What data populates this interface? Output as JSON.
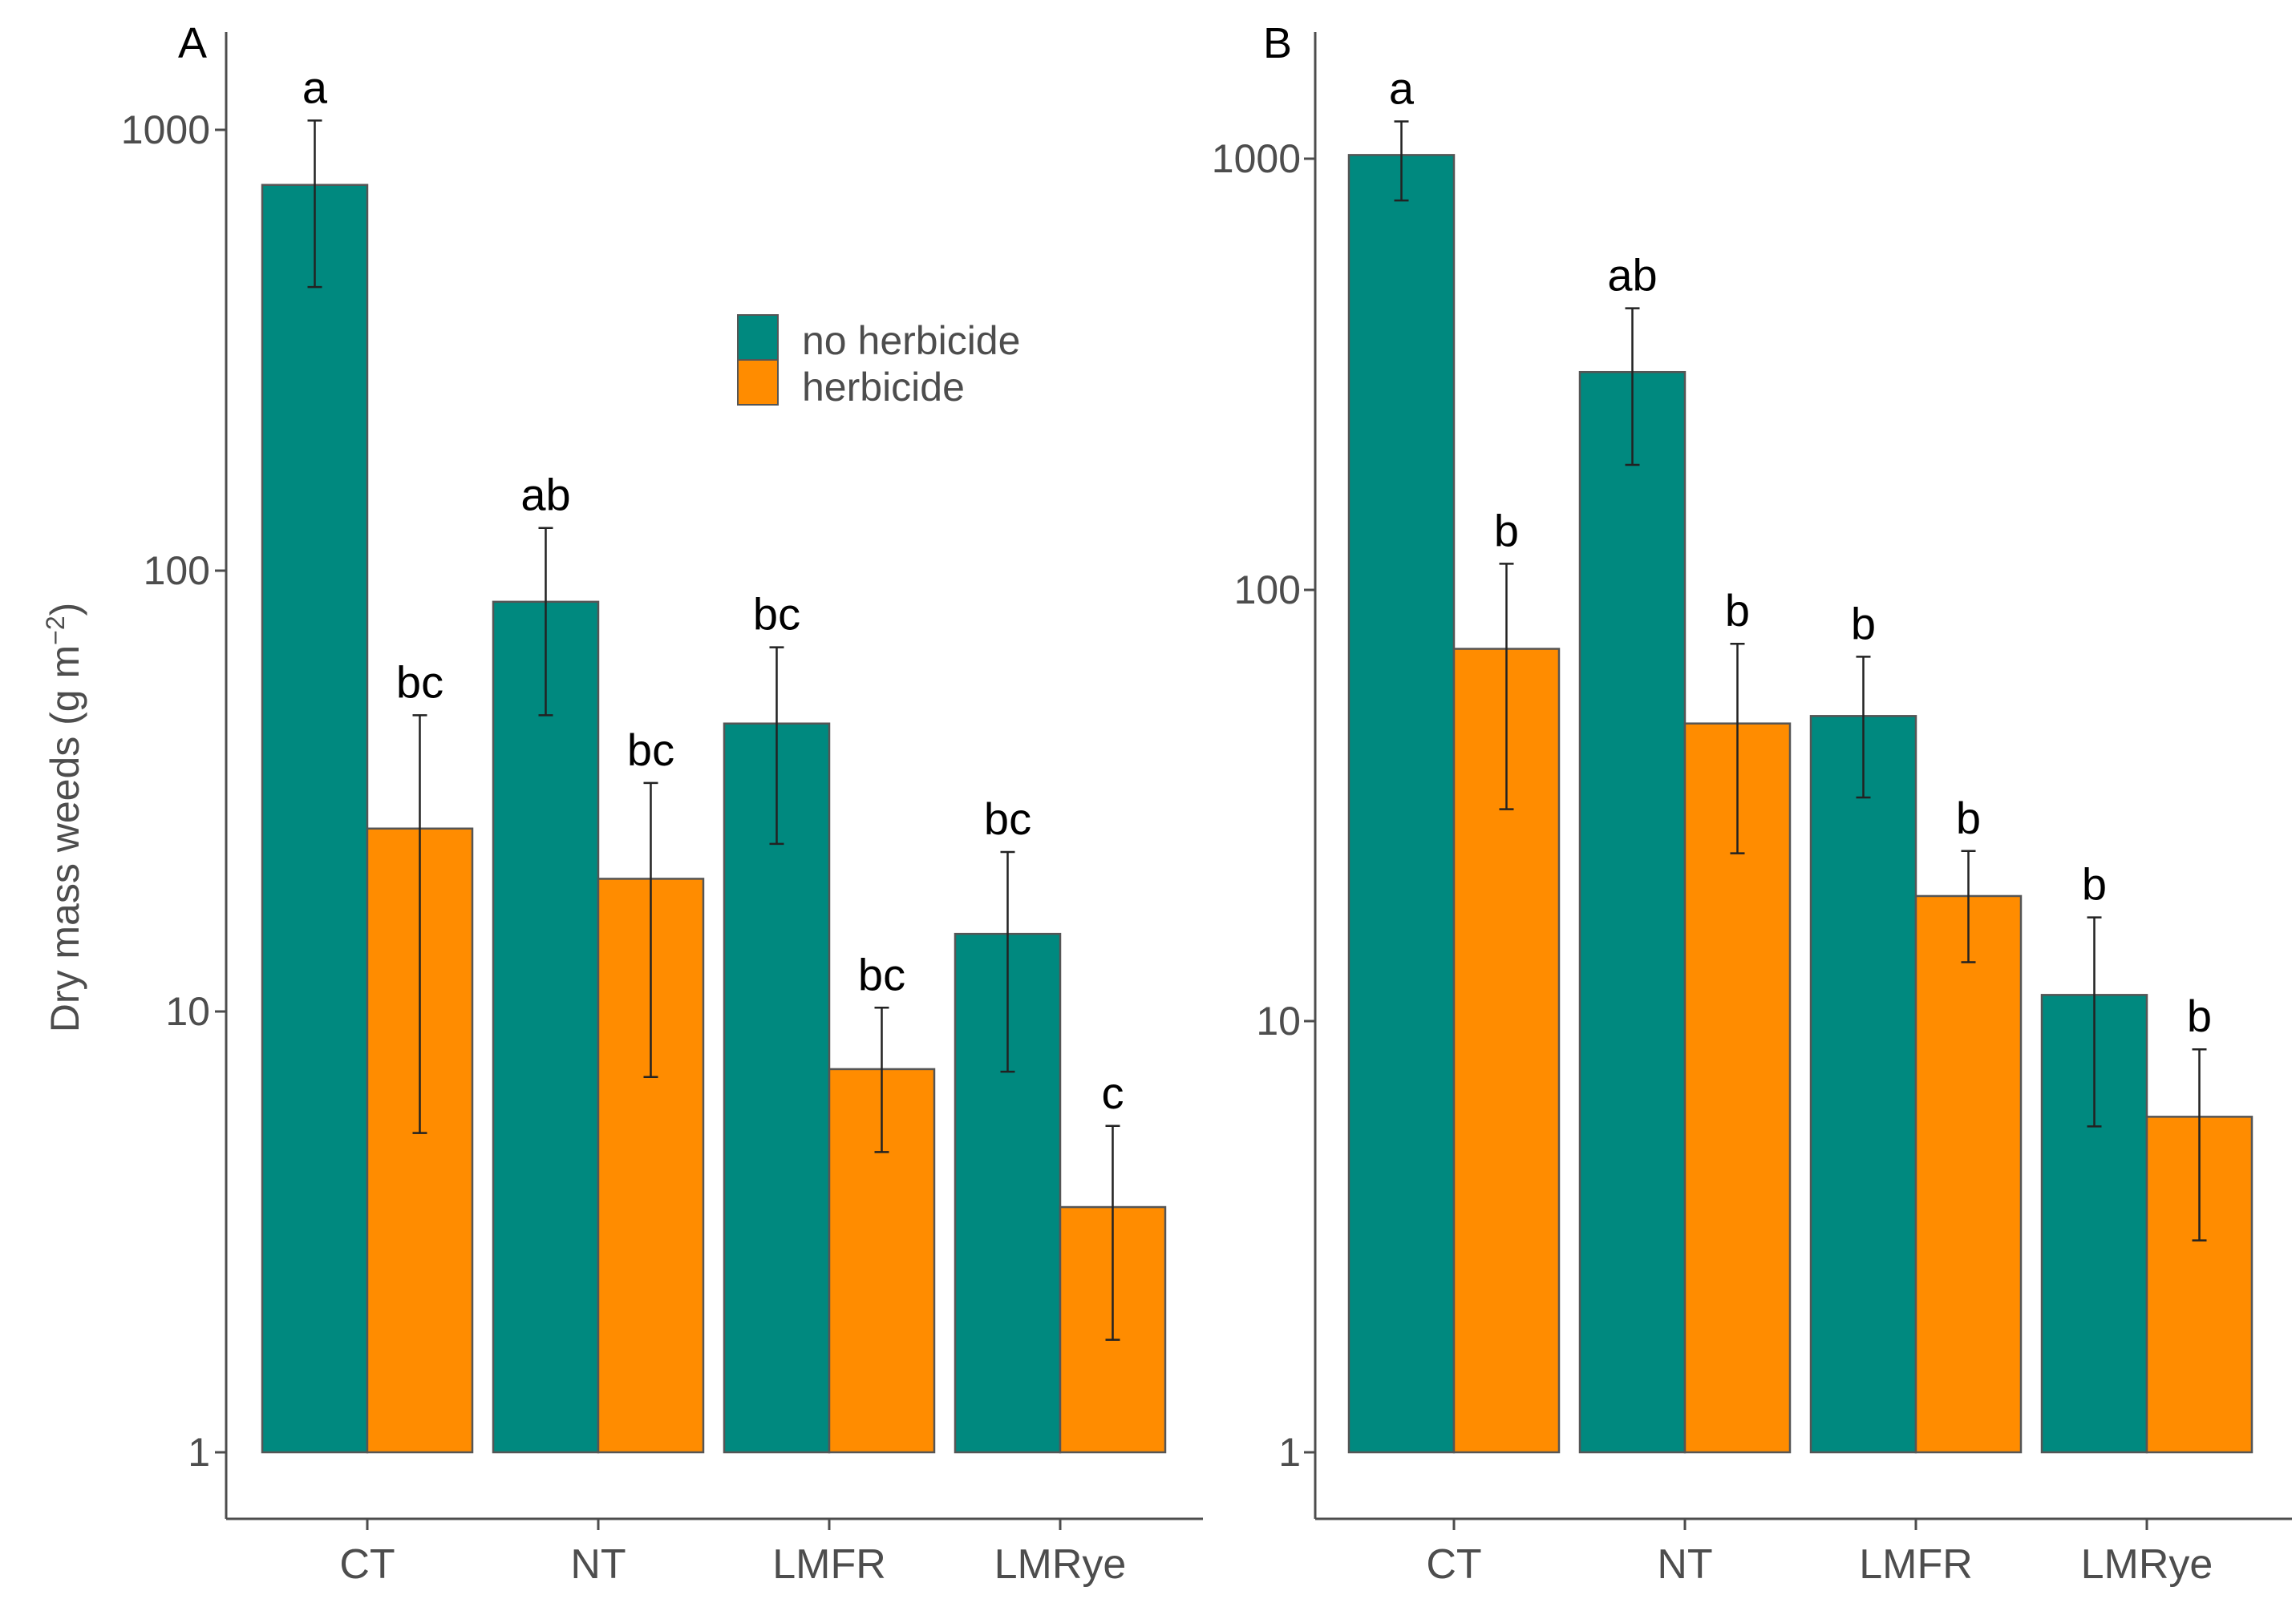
{
  "colors": {
    "no_herbicide": "#00897f",
    "herbicide": "#ff8c00",
    "axis": "#4d4d4d"
  },
  "chart_data": [
    {
      "type": "bar",
      "panel": "A",
      "ylabel": "Dry mass weeds (g m",
      "ylabel_sup": "−2",
      "ylabel_close": ")",
      "yscale": "log",
      "ylim": [
        1,
        1500
      ],
      "yticks": [
        1,
        10,
        100,
        1000
      ],
      "categories": [
        "CT",
        "NT",
        "LMFR",
        "LMRye"
      ],
      "series": [
        {
          "name": "no herbicide",
          "color": "#00897f",
          "values": [
            750,
            85,
            45,
            15
          ],
          "err_low": [
            440,
            47,
            24,
            7.3
          ],
          "err_high": [
            1050,
            125,
            67,
            23
          ],
          "labels": [
            "a",
            "ab",
            "bc",
            "bc"
          ]
        },
        {
          "name": "herbicide",
          "color": "#ff8c00",
          "values": [
            26,
            20,
            7.4,
            3.6
          ],
          "err_low": [
            5.3,
            7.1,
            4.8,
            1.8
          ],
          "err_high": [
            47,
            33,
            10.2,
            5.5
          ],
          "labels": [
            "bc",
            "bc",
            "bc",
            "c"
          ]
        }
      ],
      "legend": {
        "position": "top-right",
        "entries": [
          "no herbicide",
          "herbicide"
        ]
      }
    },
    {
      "type": "bar",
      "panel": "B",
      "yscale": "log",
      "ylim": [
        1,
        1500
      ],
      "yticks": [
        1,
        10,
        100,
        1000
      ],
      "categories": [
        "CT",
        "NT",
        "LMFR",
        "LMRye"
      ],
      "series": [
        {
          "name": "no herbicide",
          "color": "#00897f",
          "values": [
            1020,
            320,
            51,
            11.5
          ],
          "err_low": [
            800,
            195,
            33,
            5.7
          ],
          "err_high": [
            1220,
            450,
            70,
            17.4
          ],
          "labels": [
            "a",
            "ab",
            "b",
            "b"
          ]
        },
        {
          "name": "herbicide",
          "color": "#ff8c00",
          "values": [
            73,
            49,
            19.5,
            6
          ],
          "err_low": [
            31,
            24.5,
            13.7,
            3.1
          ],
          "err_high": [
            115,
            75,
            24.8,
            8.6
          ],
          "labels": [
            "b",
            "b",
            "b",
            "b"
          ]
        }
      ]
    }
  ]
}
